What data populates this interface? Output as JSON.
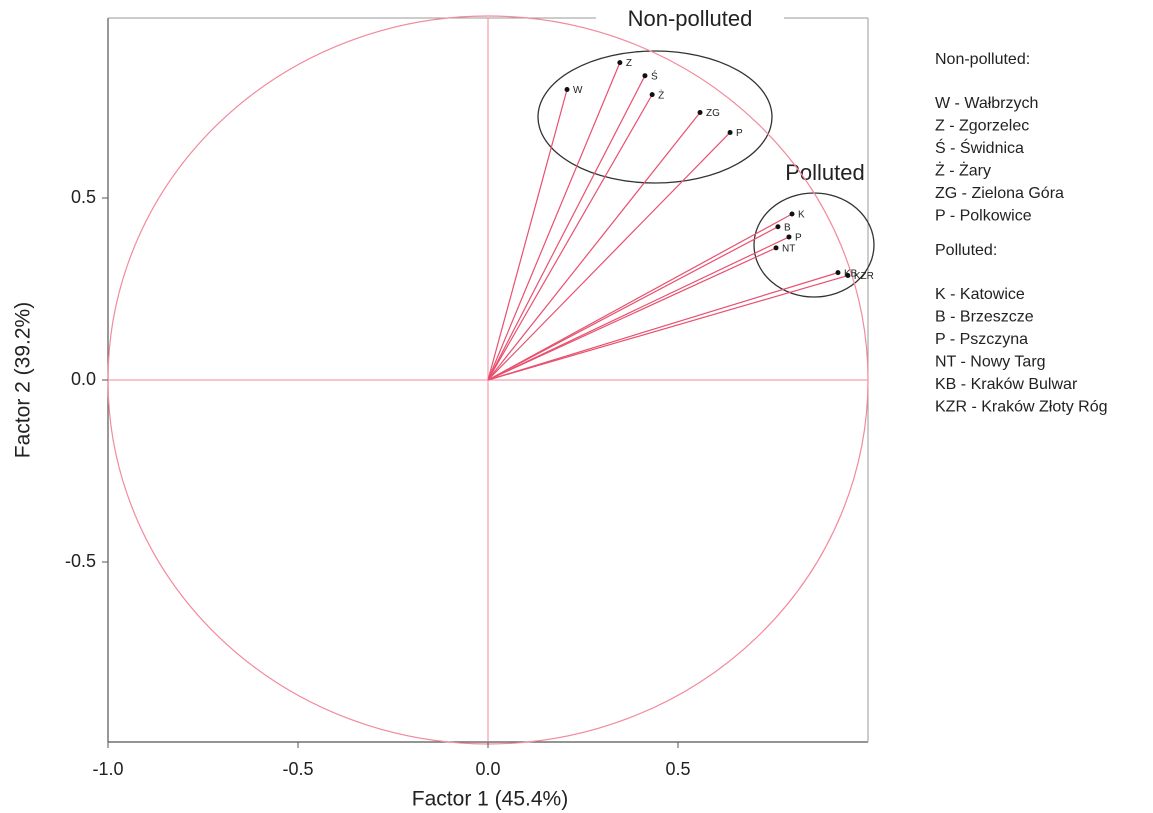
{
  "chart_data": {
    "type": "scatter",
    "x_label": "Factor 1 (45.4%)",
    "y_label": "Factor 2 (39.2%)",
    "xlim": [
      -1.0,
      1.0
    ],
    "ylim": [
      -1.0,
      1.0
    ],
    "xticks": [
      {
        "value": -1.0,
        "label": "-1.0"
      },
      -0.5,
      {
        "value": 0.0,
        "label": "0.0"
      },
      0.5
    ],
    "yticks": [
      0.5,
      {
        "value": 0.0,
        "label": "0.0"
      },
      -0.5
    ],
    "unit_circle": true,
    "vectors": true,
    "color": "#e8506e",
    "circle_color": "#f28b9c",
    "series": [
      {
        "labels": [
          "W",
          "Z",
          "Ś",
          "Ż",
          "ZG",
          "P",
          "K",
          "B",
          "P",
          "NT",
          "KB",
          "KZR"
        ],
        "x": [
          0.208,
          0.347,
          0.413,
          0.432,
          0.558,
          0.637,
          0.8,
          0.763,
          0.792,
          0.758,
          0.921,
          0.947
        ],
        "values": [
          0.798,
          0.872,
          0.836,
          0.784,
          0.735,
          0.68,
          0.456,
          0.421,
          0.393,
          0.363,
          0.295,
          0.287
        ]
      }
    ],
    "annotations": [
      "Non-polluted",
      "Polluted"
    ],
    "key": [
      "Non-polluted:",
      "W - Wałbrzych",
      "Z - Zgorzelec",
      "Ś - Świdnica",
      "Ż - Żary",
      "ZG - Zielona Góra",
      "P - Polkowice",
      "Polluted:",
      "K - Katowice",
      "B - Brzeszcze",
      "P - Pszczyna",
      "NT - Nowy Targ",
      "KB - Kraków Bulwar",
      "KZR - Kraków Złoty Róg"
    ]
  }
}
